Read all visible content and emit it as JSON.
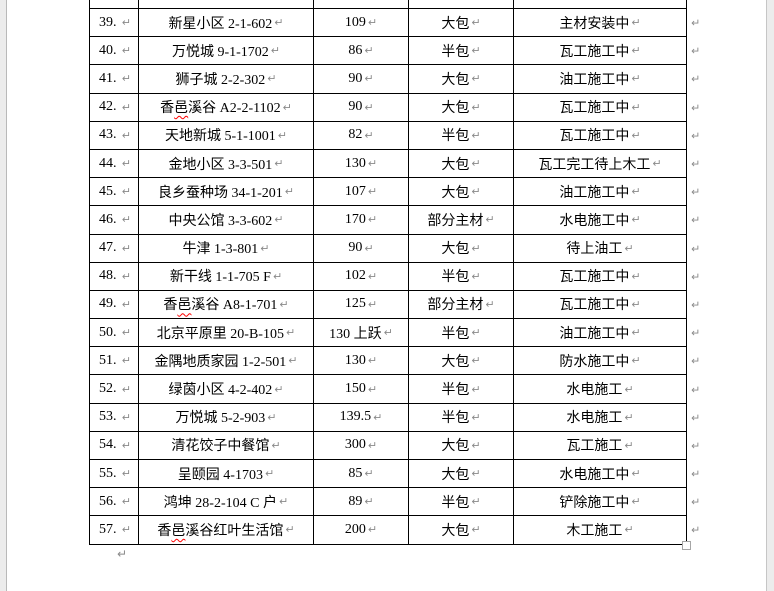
{
  "marks": {
    "cell_mark": "↵",
    "paragraph_mark": "↵"
  },
  "colors": {
    "page_background": "#ffffff",
    "outside_background": "#ececec",
    "table_border": "#000000",
    "text": "#000000",
    "formatting_mark": "#8a8a8a",
    "spellcheck_squiggle": "#ff0000"
  },
  "table": {
    "rows": [
      {
        "no": "39.",
        "name": "新星小区 2-1-602",
        "area": "109",
        "package": "大包",
        "status": "主材安装中"
      },
      {
        "no": "40.",
        "name": "万悦城 9-1-1702",
        "area": "86",
        "package": "半包",
        "status": "瓦工施工中"
      },
      {
        "no": "41.",
        "name": "狮子城 2-2-302",
        "area": "90",
        "package": "大包",
        "status": "油工施工中"
      },
      {
        "no": "42.",
        "name": "香邑溪谷 A2-2-1102",
        "area": "90",
        "package": "大包",
        "status": "瓦工施工中",
        "squiggle": "邑"
      },
      {
        "no": "43.",
        "name": "天地新城 5-1-1001",
        "area": "82",
        "package": "半包",
        "status": "瓦工施工中"
      },
      {
        "no": "44.",
        "name": "金地小区 3-3-501",
        "area": "130",
        "package": "大包",
        "status": "瓦工完工待上木工"
      },
      {
        "no": "45.",
        "name": "良乡蚕种场 34-1-201",
        "area": "107",
        "package": "大包",
        "status": "油工施工中"
      },
      {
        "no": "46.",
        "name": "中央公馆 3-3-602",
        "area": "170",
        "package": "部分主材",
        "status": "水电施工中"
      },
      {
        "no": "47.",
        "name": "牛津 1-3-801",
        "area": "90",
        "package": "大包",
        "status": "待上油工"
      },
      {
        "no": "48.",
        "name": "新干线 1-1-705 F",
        "area": "102",
        "package": "半包",
        "status": "瓦工施工中"
      },
      {
        "no": "49.",
        "name": "香邑溪谷 A8-1-701",
        "area": "125",
        "package": "部分主材",
        "status": "瓦工施工中",
        "squiggle": "邑"
      },
      {
        "no": "50.",
        "name": "北京平原里 20-B-105",
        "area": "130 上跃",
        "package": "半包",
        "status": "油工施工中"
      },
      {
        "no": "51.",
        "name": "金隅地质家园 1-2-501",
        "area": "130",
        "package": "大包",
        "status": "防水施工中"
      },
      {
        "no": "52.",
        "name": "绿茵小区 4-2-402",
        "area": "150",
        "package": "半包",
        "status": "水电施工"
      },
      {
        "no": "53.",
        "name": "万悦城 5-2-903",
        "area": "139.5",
        "package": "半包",
        "status": "水电施工"
      },
      {
        "no": "54.",
        "name": "清花饺子中餐馆",
        "area": "300",
        "package": "大包",
        "status": "瓦工施工"
      },
      {
        "no": "55.",
        "name": "呈颐园 4-1703",
        "area": "85",
        "package": "大包",
        "status": "水电施工中"
      },
      {
        "no": "56.",
        "name": "鸿坤 28-2-104 C 户",
        "area": "89",
        "package": "半包",
        "status": "铲除施工中"
      },
      {
        "no": "57.",
        "name": "香邑溪谷红叶生活馆",
        "area": "200",
        "package": "大包",
        "status": "木工施工",
        "squiggle": "邑"
      }
    ]
  }
}
